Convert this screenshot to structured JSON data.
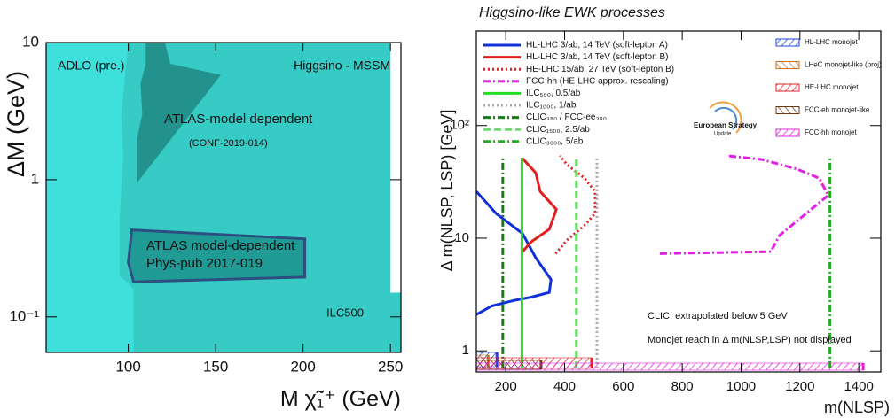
{
  "chart_data": [
    {
      "type": "region",
      "ylabel": "ΔM (GeV)",
      "xlabel": "M χ̃₁⁺ (GeV)",
      "xlim": [
        53,
        256
      ],
      "xticks": [
        100,
        150,
        200,
        250
      ],
      "ylim": [
        0.055,
        10
      ],
      "yscale": "log",
      "yticks": [
        10,
        1,
        {
          "value": 0.1,
          "label": "10⁻¹"
        }
      ],
      "annotations": [
        "ADLO (pre.)",
        "Higgsino - MSSM",
        "ATLAS-model dependent",
        "(CONF-2019-014)",
        "ATLAS model-dependent",
        "Phys-pub 2017-019",
        "ILC500"
      ],
      "regions": [
        {
          "color": "#3ee0dc",
          "x": [
            53,
            256,
            256,
            250,
            250,
            53
          ],
          "y": [
            0.055,
            0.055,
            0.15,
            0.15,
            10,
            10
          ]
        },
        {
          "color": "#37cbc5",
          "x": [
            103,
            256,
            256,
            250,
            250,
            100,
            96,
            97,
            95,
            95,
            103
          ],
          "y": [
            0.055,
            0.055,
            0.15,
            0.15,
            10,
            10,
            3,
            1.5,
            0.5,
            0.2,
            0.16
          ]
        },
        {
          "color": "#23928d",
          "x": [
            110,
            121,
            124,
            153,
            105,
            105,
            108,
            107,
            110
          ],
          "y": [
            10,
            10,
            7,
            5.8,
            0.95,
            2,
            3,
            5,
            7
          ]
        },
        {
          "color": "#1f9a94",
          "edge": "#2d4f80",
          "x": [
            102,
            201,
            201,
            103,
            100
          ],
          "y": [
            0.43,
            0.37,
            0.195,
            0.18,
            0.25
          ]
        }
      ]
    },
    {
      "type": "line",
      "title": "Higgsino-like EWK processes",
      "ylabel": "Δ m(NLSP, LSP) [GeV]",
      "xlabel": "m(NLSP)",
      "xlim": [
        100,
        1475
      ],
      "xticks": [
        200,
        400,
        600,
        800,
        1000,
        1200,
        1400
      ],
      "ylim": [
        0.65,
        690
      ],
      "yscale": "log",
      "yticks": [
        1,
        10,
        {
          "value": 100,
          "label": "10²"
        }
      ],
      "legend": "top-left",
      "annotations": [
        "CLIC: extrapolated below 5 GeV",
        "Monojet reach in Δ m(NLSP,LSP) not displayed",
        "European Strategy",
        "Update"
      ],
      "series": [
        {
          "name": "HL-LHC 3/ab, 14 TeV (soft-lepton A)",
          "color": "#1030d8",
          "style": "solid",
          "x": [
            100,
            167,
            257,
            302,
            354,
            348,
            287,
            227,
            152,
            100
          ],
          "y": [
            26,
            16.6,
            11,
            6.7,
            4.3,
            3.3,
            3.0,
            2.8,
            2.5,
            2.1
          ]
        },
        {
          "name": "HL-LHC 3/ab, 14 TeV (soft-lepton B)",
          "color": "#e02020",
          "style": "solid",
          "x": [
            257,
            302,
            317,
            372,
            348,
            287,
            257
          ],
          "y": [
            51,
            38,
            26,
            18,
            12,
            9.3,
            7.6
          ]
        },
        {
          "name": "HE-LHC 15/ab, 27 TeV (soft-lepton B)",
          "color": "#e02020",
          "style": "dotted",
          "x": [
            369,
            408,
            468,
            504,
            504,
            468,
            408,
            384
          ],
          "y": [
            7.3,
            9.6,
            13,
            16.6,
            26,
            34,
            45,
            54
          ]
        },
        {
          "name": "FCC-hh (HE-LHC approx. rescaling)",
          "color": "#e020e0",
          "style": "dashdot",
          "x": [
            724,
            1101,
            1131,
            1296,
            1266,
            1191,
            1070,
            950
          ],
          "y": [
            7.3,
            7.6,
            10.6,
            24,
            34,
            41,
            50,
            54
          ]
        },
        {
          "name": "ILC₅₀₀, 0.5/ab",
          "color": "#22dd22",
          "style": "solid",
          "x": [
            255,
            255
          ],
          "y": [
            0.7,
            52
          ]
        },
        {
          "name": "ILC₁₀₀₀, 1/ab",
          "color": "#aaaaaa",
          "style": "dotted",
          "x": [
            510,
            510
          ],
          "y": [
            0.7,
            52
          ]
        },
        {
          "name": "CLIC₃₈₀ / FCC-ee₃₈₀",
          "color": "#1a7a1a",
          "style": "dashdot",
          "x": [
            190,
            190
          ],
          "y": [
            0.7,
            52
          ]
        },
        {
          "name": "CLIC₁₅₀₀, 2.5/ab",
          "color": "#66dd66",
          "style": "dashed",
          "x": [
            440,
            440
          ],
          "y": [
            0.7,
            52
          ]
        },
        {
          "name": "CLIC₃₀₀₀, 5/ab",
          "color": "#22aa22",
          "style": "dashdot",
          "x": [
            1302,
            1302
          ],
          "y": [
            0.7,
            52
          ]
        }
      ],
      "bands": [
        {
          "name": "HL-LHC monojet",
          "color": "#2040e0",
          "value": 170
        },
        {
          "name": "LHeC monojet-like (proj)",
          "color": "#d07020",
          "value": 140
        },
        {
          "name": "HE-LHC monojet",
          "color": "#e02020",
          "value": 492
        },
        {
          "name": "FCC-eh monojet-like",
          "color": "#6a3a10",
          "value": 320
        },
        {
          "name": "FCC-hh monojet",
          "color": "#e020e0",
          "value": 1415
        }
      ]
    }
  ]
}
